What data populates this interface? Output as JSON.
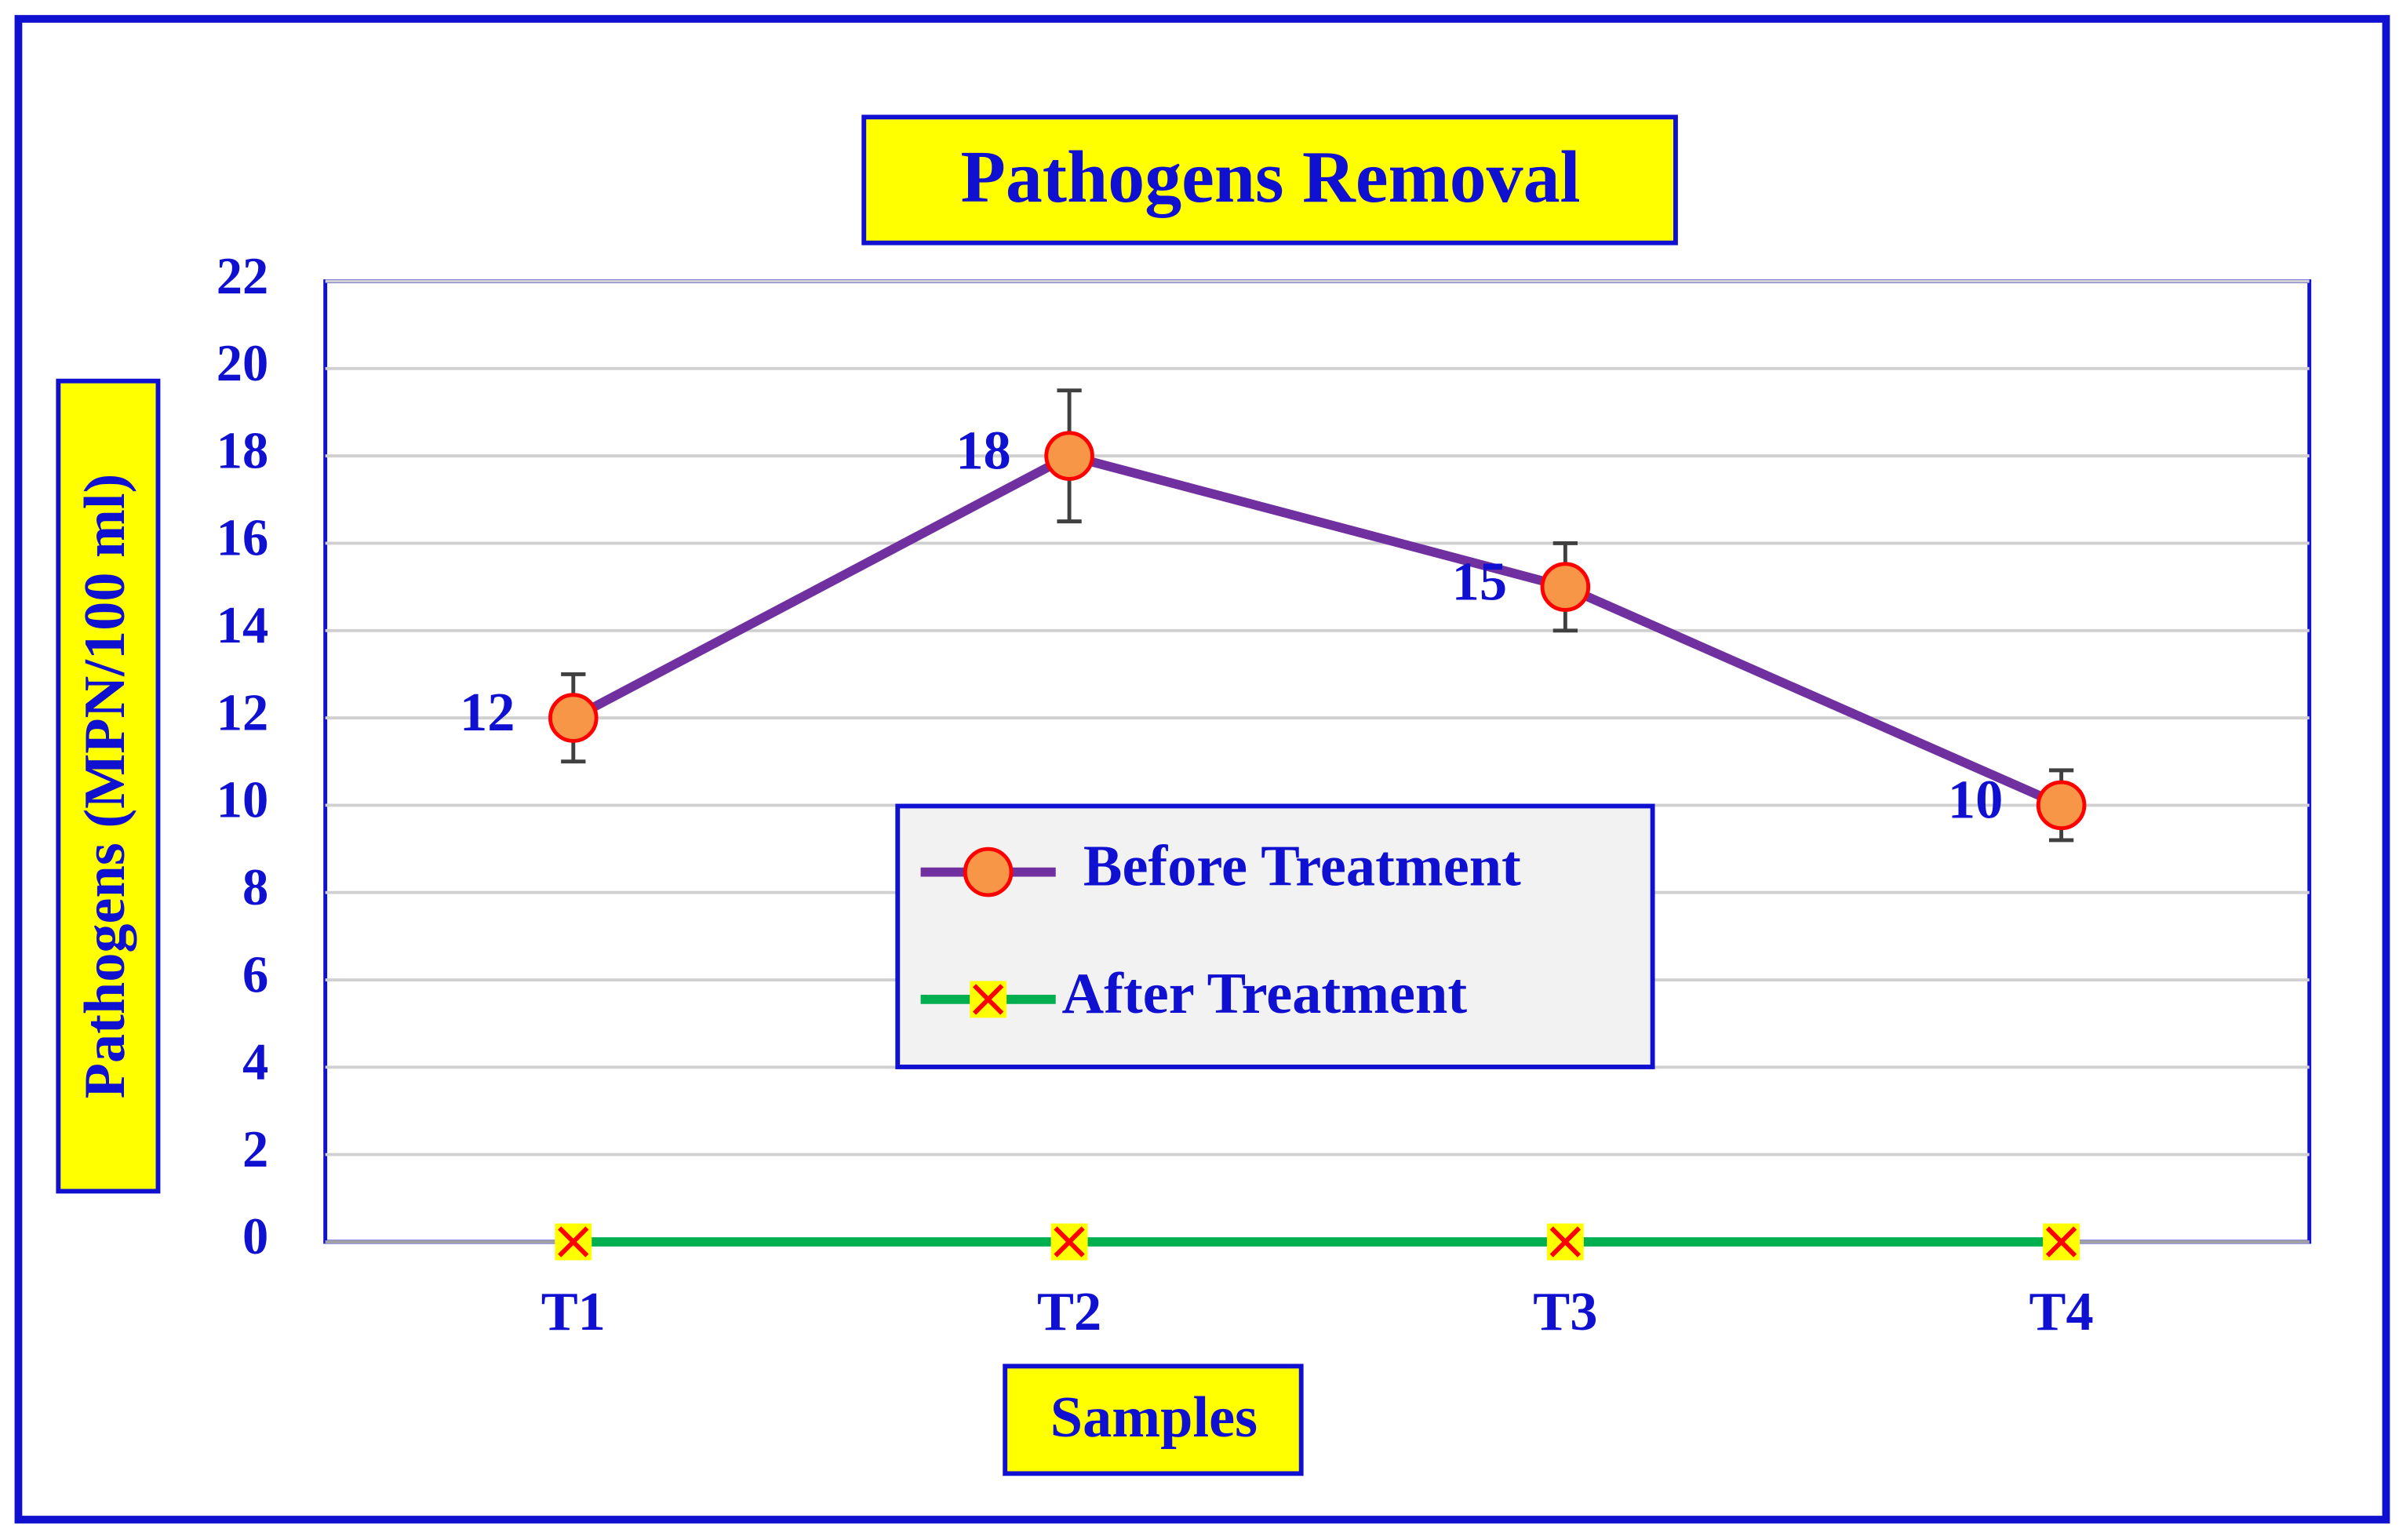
{
  "chart_data": {
    "type": "line",
    "title": "Pathogens Removal",
    "x_label": "Samples",
    "y_label": "Pathogens (MPN/100 ml)",
    "categories": [
      "T1",
      "T2",
      "T3",
      "T4"
    ],
    "series": [
      {
        "name": "Before Treatment",
        "color": "#7030a0",
        "marker": "circle",
        "marker_color": "#f79646",
        "values": [
          12,
          18,
          15,
          10
        ],
        "errors": [
          1,
          1.5,
          1,
          0.8
        ],
        "data_labels": true
      },
      {
        "name": "After Treatment",
        "color": "#00b050",
        "marker": "x",
        "marker_color": "#ffff00",
        "values": [
          0,
          0,
          0,
          0
        ]
      }
    ],
    "ylim": [
      0,
      22
    ],
    "yticks": [
      0,
      2,
      4,
      6,
      8,
      10,
      12,
      14,
      16,
      18,
      20,
      22
    ],
    "grid": true,
    "legend": "center"
  }
}
